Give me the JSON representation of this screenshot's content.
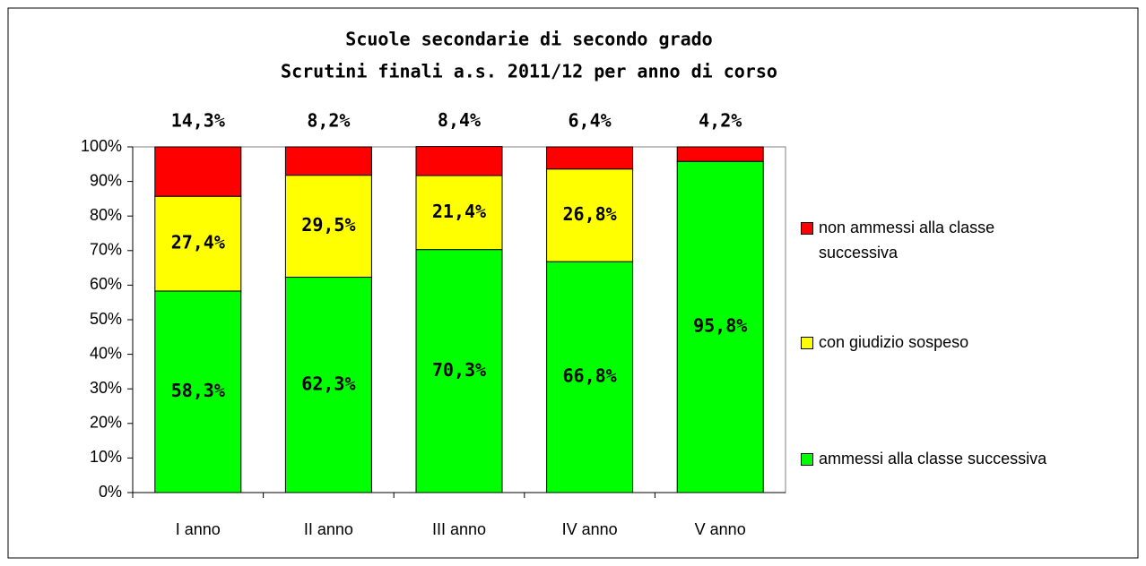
{
  "chart_data": {
    "type": "stacked_bar",
    "title": "Scuole secondarie di secondo grado",
    "subtitle": "Scrutini finali a.s. 2011/12 per anno di corso",
    "categories": [
      "I anno",
      "II anno",
      "III anno",
      "IV anno",
      "V anno"
    ],
    "series": [
      {
        "name": "ammessi alla classe successiva",
        "color": "#00ff00",
        "values": [
          58.3,
          62.3,
          70.3,
          66.8,
          95.8
        ],
        "value_labels": [
          "58,3%",
          "62,3%",
          "70,3%",
          "66,8%",
          "95,8%"
        ]
      },
      {
        "name": "con giudizio sospeso",
        "color": "#ffff00",
        "values": [
          27.4,
          29.5,
          21.4,
          26.8,
          null
        ],
        "value_labels": [
          "27,4%",
          "29,5%",
          "21,4%",
          "26,8%",
          null
        ]
      },
      {
        "name": "non ammessi alla classe successiva",
        "color": "#ff0000",
        "values": [
          14.3,
          8.2,
          8.4,
          6.4,
          4.2
        ],
        "value_labels": [
          "14,3%",
          "8,2%",
          "8,4%",
          "6,4%",
          "4,2%"
        ]
      }
    ],
    "ylim": [
      0,
      100
    ],
    "yticks": [
      {
        "value": 0,
        "label": "0%"
      },
      {
        "value": 10,
        "label": "10%"
      },
      {
        "value": 20,
        "label": "20%"
      },
      {
        "value": 30,
        "label": "30%"
      },
      {
        "value": 40,
        "label": "40%"
      },
      {
        "value": 50,
        "label": "50%"
      },
      {
        "value": 60,
        "label": "60%"
      },
      {
        "value": 70,
        "label": "70%"
      },
      {
        "value": 80,
        "label": "80%"
      },
      {
        "value": 90,
        "label": "90%"
      },
      {
        "value": 100,
        "label": "100%"
      }
    ],
    "legend": "right"
  }
}
